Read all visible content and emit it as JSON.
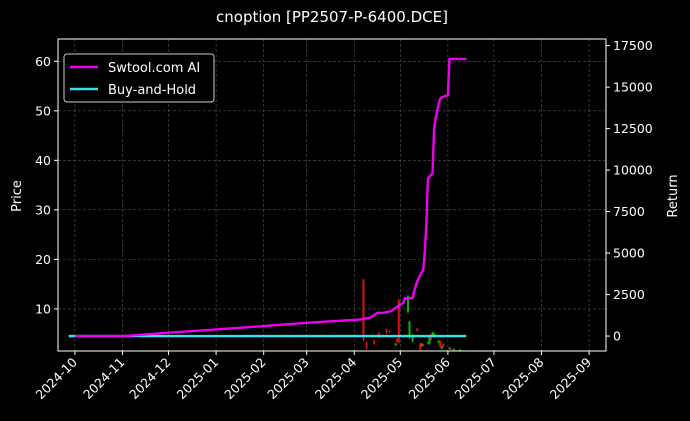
{
  "chart_data": {
    "type": "line",
    "title": "cnoption [PP2507-P-6400.DCE]",
    "xlabel": "",
    "ylabel_left": "Price",
    "ylabel_right": "Return",
    "x_tick_labels": [
      "2024-10",
      "2024-11",
      "2024-12",
      "2025-01",
      "2025-02",
      "2025-03",
      "2025-04",
      "2025-05",
      "2025-06",
      "2025-07",
      "2025-08",
      "2025-09"
    ],
    "x_ticks": [
      "2024-10-01",
      "2024-11-01",
      "2024-12-01",
      "2025-01-01",
      "2025-02-01",
      "2025-03-01",
      "2025-04-01",
      "2025-05-01",
      "2025-06-01",
      "2025-07-01",
      "2025-08-01",
      "2025-09-01"
    ],
    "xlim": [
      "2024-09-20",
      "2025-09-12"
    ],
    "ylim_left": [
      1.5,
      64.5
    ],
    "yticks_left": [
      10,
      20,
      30,
      40,
      50,
      60
    ],
    "ylim_right": [
      -900,
      17900
    ],
    "yticks_right": [
      0,
      2500,
      5000,
      7500,
      10000,
      12500,
      15000,
      17500
    ],
    "grid": true,
    "legend_position": "top-left",
    "colors": {
      "background": "#000000",
      "grid": "#555555",
      "up": "#00c000",
      "down": "#e01010"
    },
    "series": [
      {
        "name": "Swtool.com AI",
        "axis": "right",
        "color": "#ee00ee",
        "x": [
          "2024-10-01",
          "2024-11-01",
          "2024-12-01",
          "2025-01-01",
          "2025-02-01",
          "2025-03-01",
          "2025-04-05",
          "2025-04-08",
          "2025-04-11",
          "2025-04-13",
          "2025-04-16",
          "2025-04-20",
          "2025-04-25",
          "2025-05-01",
          "2025-05-03",
          "2025-05-04",
          "2025-05-06",
          "2025-05-08",
          "2025-05-09",
          "2025-05-10",
          "2025-05-12",
          "2025-05-14",
          "2025-05-16",
          "2025-05-17",
          "2025-05-18",
          "2025-05-19",
          "2025-05-20",
          "2025-05-22",
          "2025-05-23",
          "2025-05-24",
          "2025-05-26",
          "2025-05-27",
          "2025-05-28",
          "2025-06-01",
          "2025-06-02",
          "2025-06-13"
        ],
        "values": [
          0,
          0,
          200,
          400,
          600,
          800,
          1000,
          1050,
          1100,
          1200,
          1400,
          1400,
          1500,
          1900,
          2000,
          2300,
          2250,
          2300,
          2300,
          2700,
          3300,
          3700,
          4000,
          5200,
          6800,
          9500,
          9600,
          9800,
          12500,
          13100,
          14000,
          14300,
          14400,
          14500,
          16700,
          16700
        ]
      },
      {
        "name": "Buy-and-Hold",
        "axis": "right",
        "color": "#2ee6ee",
        "x": [
          "2024-09-27",
          "2025-06-13"
        ],
        "values": [
          0,
          0
        ]
      }
    ],
    "candles": [
      {
        "date": "2025-04-07",
        "open": 3.8,
        "close": 16.0,
        "low": 3.4,
        "high": 16.0,
        "color": "down"
      },
      {
        "date": "2025-04-09",
        "open": 3.2,
        "close": 2.1,
        "low": 1.9,
        "high": 3.4,
        "color": "down"
      },
      {
        "date": "2025-04-14",
        "open": 2.9,
        "close": 3.6,
        "low": 2.7,
        "high": 3.8,
        "color": "down"
      },
      {
        "date": "2025-04-17",
        "open": 4.3,
        "close": 5.2,
        "low": 4.1,
        "high": 5.3,
        "color": "down"
      },
      {
        "date": "2025-04-22",
        "open": 5.3,
        "close": 5.9,
        "low": 5.0,
        "high": 6.0,
        "color": "down"
      },
      {
        "date": "2025-04-24",
        "open": 5.6,
        "close": 5.4,
        "low": 5.2,
        "high": 5.7,
        "color": "down"
      },
      {
        "date": "2025-04-28",
        "open": 3.0,
        "close": 2.7,
        "low": 2.5,
        "high": 3.2,
        "color": "up"
      },
      {
        "date": "2025-04-29",
        "open": 3.3,
        "close": 4.0,
        "low": 3.2,
        "high": 4.1,
        "color": "down"
      },
      {
        "date": "2025-04-30",
        "open": 3.2,
        "close": 11.8,
        "low": 3.0,
        "high": 12.0,
        "color": "down"
      },
      {
        "date": "2025-05-06",
        "open": 9.4,
        "close": 12.6,
        "low": 9.0,
        "high": 12.8,
        "color": "up"
      },
      {
        "date": "2025-05-07",
        "open": 4.5,
        "close": 7.4,
        "low": 3.9,
        "high": 7.6,
        "color": "up"
      },
      {
        "date": "2025-05-09",
        "open": 4.7,
        "close": 3.4,
        "low": 3.2,
        "high": 4.9,
        "color": "up"
      },
      {
        "date": "2025-05-12",
        "open": 5.6,
        "close": 6.0,
        "low": 5.4,
        "high": 6.2,
        "color": "down"
      },
      {
        "date": "2025-05-14",
        "open": 3.0,
        "close": 1.8,
        "low": 1.6,
        "high": 3.2,
        "color": "down"
      },
      {
        "date": "2025-05-15",
        "open": 2.9,
        "close": 2.5,
        "low": 2.3,
        "high": 3.1,
        "color": "up"
      },
      {
        "date": "2025-05-16",
        "open": 2.6,
        "close": 2.9,
        "low": 2.5,
        "high": 3.0,
        "color": "down"
      },
      {
        "date": "2025-05-19",
        "open": 3.2,
        "close": 3.0,
        "low": 2.8,
        "high": 3.4,
        "color": "up"
      },
      {
        "date": "2025-05-20",
        "open": 3.0,
        "close": 4.3,
        "low": 2.8,
        "high": 4.4,
        "color": "up"
      },
      {
        "date": "2025-05-21",
        "open": 3.8,
        "close": 4.8,
        "low": 3.6,
        "high": 5.0,
        "color": "down"
      },
      {
        "date": "2025-05-22",
        "open": 4.9,
        "close": 5.2,
        "low": 4.7,
        "high": 5.4,
        "color": "up"
      },
      {
        "date": "2025-05-23",
        "open": 4.4,
        "close": 5.0,
        "low": 4.2,
        "high": 5.2,
        "color": "up"
      },
      {
        "date": "2025-05-26",
        "open": 3.6,
        "close": 3.3,
        "low": 3.1,
        "high": 3.7,
        "color": "up"
      },
      {
        "date": "2025-05-27",
        "open": 3.5,
        "close": 2.4,
        "low": 2.2,
        "high": 3.6,
        "color": "down"
      },
      {
        "date": "2025-05-28",
        "open": 2.4,
        "close": 2.0,
        "low": 1.8,
        "high": 2.5,
        "color": "up"
      },
      {
        "date": "2025-05-29",
        "open": 2.4,
        "close": 3.0,
        "low": 2.2,
        "high": 3.1,
        "color": "down"
      },
      {
        "date": "2025-06-02",
        "open": 2.2,
        "close": 2.0,
        "low": 1.8,
        "high": 2.3,
        "color": "up"
      },
      {
        "date": "2025-06-03",
        "open": 2.0,
        "close": 1.9,
        "low": 1.7,
        "high": 2.1,
        "color": "down"
      },
      {
        "date": "2025-06-05",
        "open": 1.9,
        "close": 1.8,
        "low": 1.6,
        "high": 2.0,
        "color": "up"
      },
      {
        "date": "2025-06-09",
        "open": 1.8,
        "close": 1.75,
        "low": 1.6,
        "high": 1.85,
        "color": "up"
      }
    ]
  }
}
